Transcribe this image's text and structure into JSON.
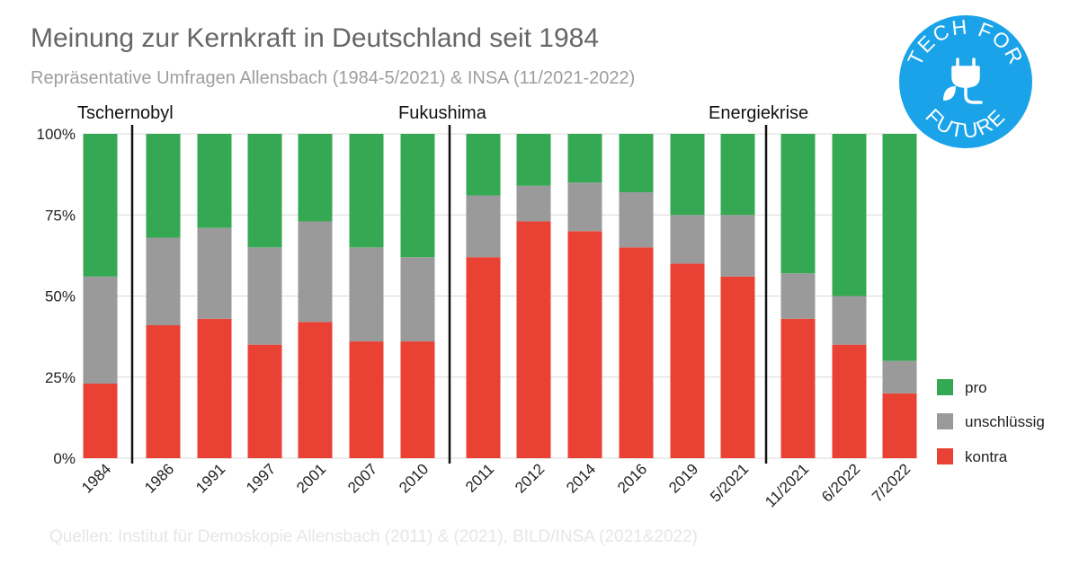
{
  "header": {
    "title": "Meinung zur Kernkraft in Deutschland seit 1984",
    "subtitle": "Repräsentative Umfragen Allensbach (1984-5/2021) & INSA (11/2021-2022)"
  },
  "footer": {
    "source": "Quellen: Institut für Demoskopie Allensbach (2011) & (2021), BILD/INSA (2021&2022)"
  },
  "logo": {
    "line1": "TECH FOR",
    "line2": "FUTURE",
    "icon": "plug-leaf-icon",
    "color": "#1aa3e8"
  },
  "chart_data": {
    "type": "bar",
    "stacked": true,
    "categories": [
      "1984",
      "1986",
      "1991",
      "1997",
      "2001",
      "2007",
      "2010",
      "2011",
      "2012",
      "2014",
      "2016",
      "2019",
      "5/2021",
      "11/2021",
      "6/2022",
      "7/2022"
    ],
    "series": [
      {
        "name": "kontra",
        "color": "#e94234",
        "values": [
          23,
          41,
          43,
          35,
          42,
          36,
          36,
          62,
          73,
          70,
          65,
          60,
          56,
          43,
          35,
          20
        ]
      },
      {
        "name": "unschlüssig",
        "color": "#9a9a9a",
        "values": [
          33,
          27,
          28,
          30,
          31,
          29,
          26,
          19,
          11,
          15,
          17,
          15,
          19,
          14,
          15,
          10
        ]
      },
      {
        "name": "pro",
        "color": "#34a853",
        "values": [
          44,
          32,
          29,
          35,
          27,
          35,
          38,
          19,
          16,
          15,
          18,
          25,
          25,
          43,
          50,
          70
        ]
      }
    ],
    "ylim": [
      0,
      100
    ],
    "yticks": [
      "0%",
      "25%",
      "50%",
      "75%",
      "100%"
    ],
    "grid": true,
    "legend_position": "right",
    "legend_order": [
      "pro",
      "unschlüssig",
      "kontra"
    ],
    "annotations": [
      {
        "label": "Tschernobyl",
        "after": "1984"
      },
      {
        "label": "Fukushima",
        "after": "2010"
      },
      {
        "label": "Energiekrise",
        "after": "5/2021"
      }
    ]
  }
}
